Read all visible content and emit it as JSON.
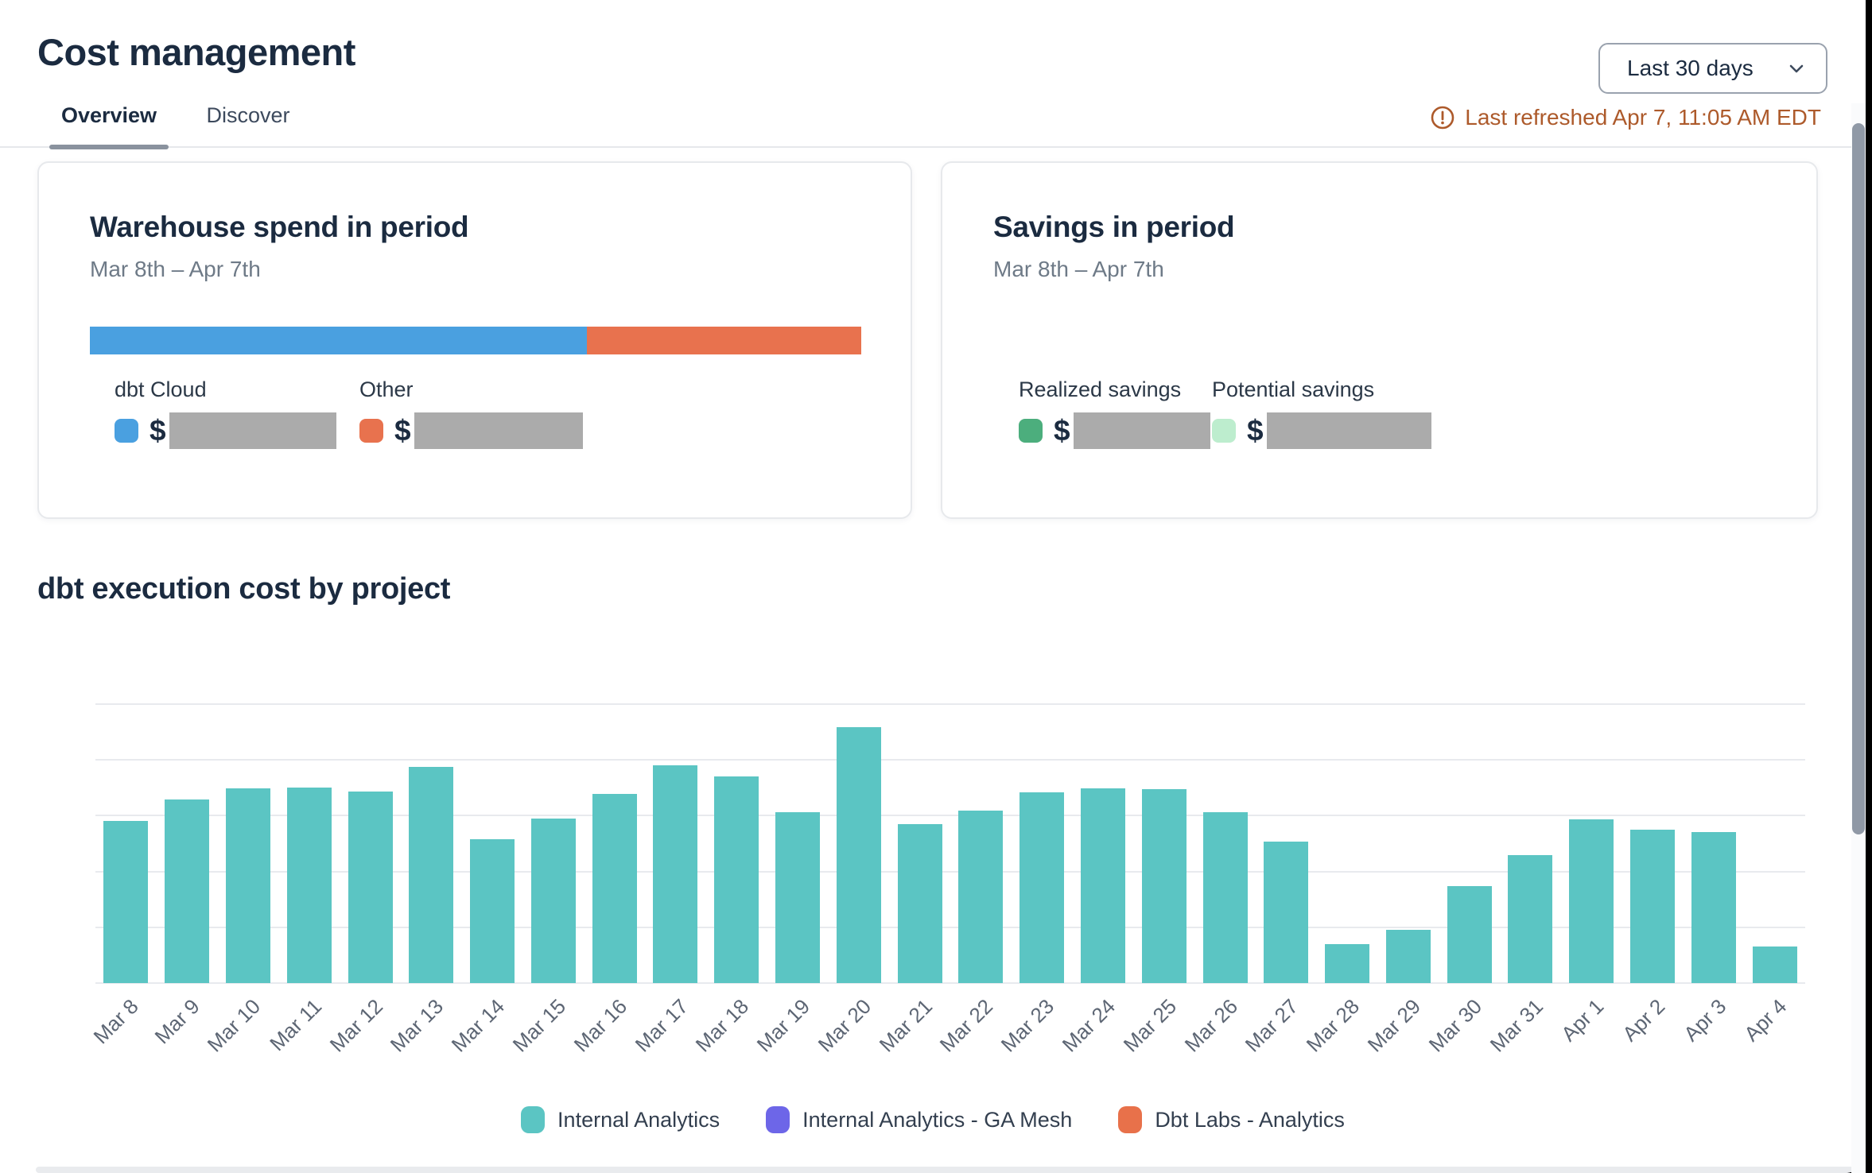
{
  "header": {
    "title": "Cost management",
    "tabs": [
      {
        "label": "Overview",
        "active": true
      },
      {
        "label": "Discover",
        "active": false
      }
    ],
    "date_range_selector": {
      "value": "Last 30 days",
      "icon": "chevron-down-icon"
    },
    "last_refreshed": "Last refreshed Apr 7, 11:05 AM EDT",
    "last_refreshed_color": "#ad5a2b"
  },
  "cards": {
    "warehouse_spend": {
      "title": "Warehouse spend in period",
      "period": "Mar 8th – Apr 7th",
      "stacked_bar": {
        "segments": [
          {
            "name": "dbt Cloud",
            "color": "#4aa0e0",
            "fraction": 0.644
          },
          {
            "name": "Other",
            "color": "#e8724e",
            "fraction": 0.356
          }
        ]
      },
      "legend": [
        {
          "label": "dbt Cloud",
          "color": "#4aa0e0",
          "currency_symbol": "$",
          "value_redacted": true
        },
        {
          "label": "Other",
          "color": "#e8724e",
          "currency_symbol": "$",
          "value_redacted": true
        }
      ]
    },
    "savings": {
      "title": "Savings in period",
      "period": "Mar 8th – Apr 7th",
      "legend": [
        {
          "label": "Realized savings",
          "color": "#4cae7d",
          "currency_symbol": "$",
          "value_redacted": true
        },
        {
          "label": "Potential savings",
          "color": "#bdedce",
          "currency_symbol": "$",
          "value_redacted": true
        }
      ]
    }
  },
  "chart_section": {
    "title": "dbt execution cost by project"
  },
  "chart_data": {
    "type": "bar",
    "title": "dbt execution cost by project",
    "categories": [
      "Mar 8",
      "Mar 9",
      "Mar 10",
      "Mar 11",
      "Mar 12",
      "Mar 13",
      "Mar 14",
      "Mar 15",
      "Mar 16",
      "Mar 17",
      "Mar 18",
      "Mar 19",
      "Mar 20",
      "Mar 21",
      "Mar 22",
      "Mar 23",
      "Mar 24",
      "Mar 25",
      "Mar 26",
      "Mar 27",
      "Mar 28",
      "Mar 29",
      "Mar 30",
      "Mar 31",
      "Apr 1",
      "Apr 2",
      "Apr 3",
      "Apr 4"
    ],
    "series": [
      {
        "name": "Internal Analytics",
        "color": "#5bc5c3",
        "values": [
          580,
          658,
          698,
          700,
          687,
          775,
          515,
          591,
          678,
          780,
          740,
          612,
          917,
          570,
          618,
          684,
          697,
          694,
          612,
          508,
          140,
          190,
          347,
          458,
          587,
          550,
          541,
          131
        ]
      },
      {
        "name": "Internal Analytics - GA Mesh",
        "color": "#6d66e8",
        "values": [
          0,
          0,
          0,
          0,
          0,
          0,
          0,
          0,
          0,
          0,
          0,
          0,
          0,
          0,
          0,
          0,
          0,
          0,
          0,
          0,
          0,
          0,
          0,
          0,
          0,
          0,
          0,
          0
        ]
      },
      {
        "name": "Dbt Labs - Analytics",
        "color": "#e8714a",
        "values": [
          0,
          0,
          0,
          0,
          0,
          0,
          0,
          0,
          0,
          0,
          0,
          0,
          0,
          0,
          0,
          0,
          0,
          0,
          0,
          0,
          0,
          0,
          0,
          0,
          0,
          0,
          0,
          0
        ]
      }
    ],
    "xlabel": "",
    "ylabel": "",
    "ylim": [
      0,
      1000
    ],
    "yticks": [
      0,
      200,
      400,
      600,
      800,
      1000
    ],
    "grid": true,
    "legend_position": "bottom"
  }
}
